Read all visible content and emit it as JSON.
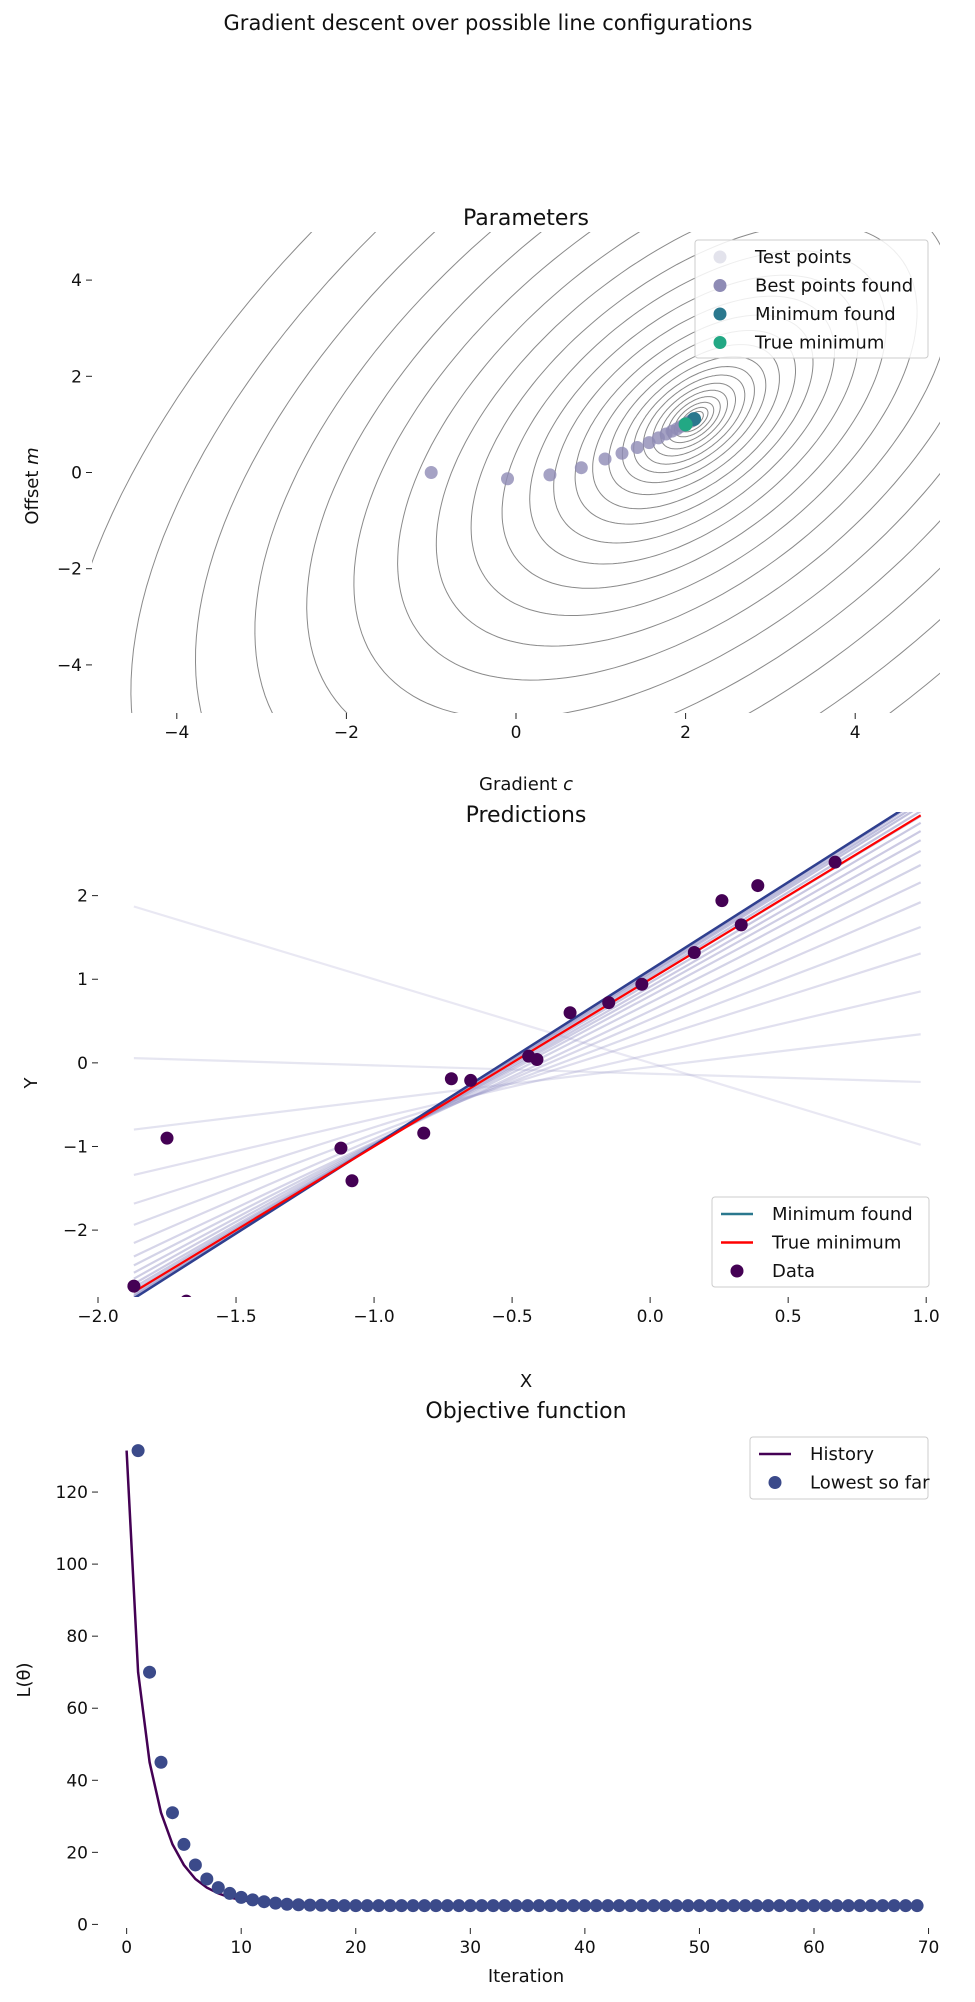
{
  "suptitle": "Gradient descent over possible line configurations",
  "colors": {
    "test_points": "#e3e3ec",
    "best_points": "#8e8bb5",
    "minimum_found": "#2a788e",
    "true_minimum": "#22a884",
    "contour": "#8a8a8a",
    "fit_lines": "#9a98c8",
    "final_line": "#2f3f8f",
    "true_line": "#ff0000",
    "data": "#440154",
    "history": "#440154",
    "lowest": "#3b4a8a"
  },
  "chart_data": [
    {
      "type": "scatter",
      "title": "Parameters",
      "xlabel": "Gradient c",
      "ylabel": "Offset m",
      "xlabel_main": "Gradient ",
      "xlabel_var": "c",
      "ylabel_main": "Offset ",
      "ylabel_var": "m",
      "xlim": [
        -5,
        5
      ],
      "ylim": [
        -5,
        5
      ],
      "xticks": [
        -4,
        -2,
        0,
        2,
        4
      ],
      "yticks": [
        -4,
        -2,
        0,
        2,
        4
      ],
      "xtick_labels": [
        "−4",
        "−2",
        "0",
        "2",
        "4"
      ],
      "ytick_labels": [
        "−4",
        "−2",
        "0",
        "2",
        "4"
      ],
      "contours": {
        "center": [
          2.1,
          1.1
        ],
        "quad": [
          2.4,
          -1.7,
          1.0
        ],
        "levels": [
          0.008,
          0.02,
          0.045,
          0.09,
          0.16,
          0.26,
          0.4,
          0.6,
          0.85,
          1.2,
          1.7,
          2.4,
          3.3,
          4.6,
          6.3,
          8.6,
          11.6,
          15.5,
          20.5,
          27,
          35,
          45,
          58,
          74,
          94
        ]
      },
      "legend": [
        "Test points",
        "Best points found",
        "Minimum found",
        "True minimum"
      ],
      "best_points": [
        [
          -1.0,
          0.0
        ],
        [
          -0.1,
          -0.13
        ],
        [
          0.4,
          -0.05
        ],
        [
          0.77,
          0.1
        ],
        [
          1.05,
          0.28
        ],
        [
          1.25,
          0.4
        ],
        [
          1.43,
          0.52
        ],
        [
          1.57,
          0.62
        ],
        [
          1.68,
          0.72
        ],
        [
          1.77,
          0.8
        ],
        [
          1.84,
          0.86
        ],
        [
          1.9,
          0.91
        ],
        [
          1.95,
          0.96
        ],
        [
          1.99,
          1.0
        ],
        [
          2.02,
          1.03
        ],
        [
          2.05,
          1.06
        ],
        [
          2.07,
          1.08
        ],
        [
          2.09,
          1.1
        ]
      ],
      "minimum_found": [
        2.1,
        1.11
      ],
      "true_minimum": [
        2.0,
        1.0
      ]
    },
    {
      "type": "line",
      "title": "Predictions",
      "xlabel": "X",
      "ylabel": "Y",
      "xlim": [
        -2.0,
        1.05
      ],
      "ylim": [
        -2.8,
        3.0
      ],
      "xticks": [
        -2.0,
        -1.5,
        -1.0,
        -0.5,
        0.0,
        0.5,
        1.0
      ],
      "yticks": [
        -2,
        -1,
        0,
        1,
        2
      ],
      "xtick_labels": [
        "−2.0",
        "−1.5",
        "−1.0",
        "−0.5",
        "0.0",
        "0.5",
        "1.0"
      ],
      "ytick_labels": [
        "−2",
        "−1",
        "0",
        "1",
        "2"
      ],
      "line_range": [
        -1.87,
        0.98
      ],
      "legend": [
        "Minimum found",
        "True minimum",
        "Data"
      ],
      "fit_lines": [
        [
          -1.0,
          0.0
        ],
        [
          -0.1,
          -0.13
        ],
        [
          0.4,
          -0.05
        ],
        [
          0.77,
          0.1
        ],
        [
          1.05,
          0.28
        ],
        [
          1.25,
          0.4
        ],
        [
          1.43,
          0.52
        ],
        [
          1.57,
          0.62
        ],
        [
          1.68,
          0.72
        ],
        [
          1.77,
          0.8
        ],
        [
          1.84,
          0.86
        ],
        [
          1.9,
          0.91
        ],
        [
          1.95,
          0.96
        ],
        [
          1.99,
          1.0
        ],
        [
          2.02,
          1.03
        ],
        [
          2.05,
          1.06
        ],
        [
          2.07,
          1.08
        ],
        [
          2.09,
          1.1
        ]
      ],
      "minimum_found": [
        2.1,
        1.11
      ],
      "true_minimum": [
        2.0,
        1.0
      ],
      "data_points": [
        [
          -1.87,
          -2.67
        ],
        [
          -1.68,
          -2.85
        ],
        [
          -1.75,
          -0.9
        ],
        [
          -1.12,
          -1.02
        ],
        [
          -1.08,
          -1.41
        ],
        [
          -0.82,
          -0.84
        ],
        [
          -0.72,
          -0.19
        ],
        [
          -0.65,
          -0.21
        ],
        [
          -0.44,
          0.08
        ],
        [
          -0.41,
          0.04
        ],
        [
          -0.29,
          0.6
        ],
        [
          -0.15,
          0.72
        ],
        [
          -0.03,
          0.94
        ],
        [
          0.16,
          1.32
        ],
        [
          0.26,
          1.94
        ],
        [
          0.33,
          1.65
        ],
        [
          0.39,
          2.12
        ],
        [
          0.67,
          2.4
        ]
      ]
    },
    {
      "type": "line",
      "title": "Objective function",
      "xlabel": "Iteration",
      "ylabel": "L(θ)",
      "xlim": [
        -2.5,
        71
      ],
      "ylim": [
        -1,
        140
      ],
      "xticks": [
        0,
        10,
        20,
        30,
        40,
        50,
        60,
        70
      ],
      "yticks": [
        0,
        20,
        40,
        60,
        80,
        100,
        120
      ],
      "xtick_labels": [
        "0",
        "10",
        "20",
        "30",
        "40",
        "50",
        "60",
        "70"
      ],
      "ytick_labels": [
        "0",
        "20",
        "40",
        "60",
        "80",
        "100",
        "120"
      ],
      "legend": [
        "History",
        "Lowest so far"
      ],
      "history": [
        131.5,
        70,
        45,
        31,
        22.2,
        16.5,
        12.6,
        10.2,
        8.6,
        7.5,
        6.8,
        6.3,
        5.9,
        5.6,
        5.45,
        5.35,
        5.3,
        5.25,
        5.2,
        5.2
      ],
      "lowest": [
        131.5,
        70,
        45,
        31,
        22.2,
        16.5,
        12.6,
        10.2,
        8.6,
        7.5,
        6.8,
        6.3,
        5.9,
        5.6,
        5.45,
        5.35,
        5.3,
        5.25,
        5.2,
        5.2,
        5.2,
        5.2,
        5.2,
        5.2,
        5.2,
        5.2,
        5.2,
        5.2,
        5.2,
        5.2,
        5.2,
        5.2,
        5.2,
        5.2,
        5.2,
        5.2,
        5.2,
        5.2,
        5.2,
        5.2,
        5.2,
        5.2,
        5.2,
        5.2,
        5.2,
        5.2,
        5.2,
        5.2,
        5.2,
        5.2,
        5.2,
        5.2,
        5.2,
        5.2,
        5.2,
        5.2,
        5.2,
        5.2,
        5.2,
        5.2,
        5.2,
        5.2,
        5.2,
        5.2,
        5.2,
        5.2,
        5.2,
        5.2,
        5.2
      ],
      "lowest_start_iteration": 1
    }
  ]
}
